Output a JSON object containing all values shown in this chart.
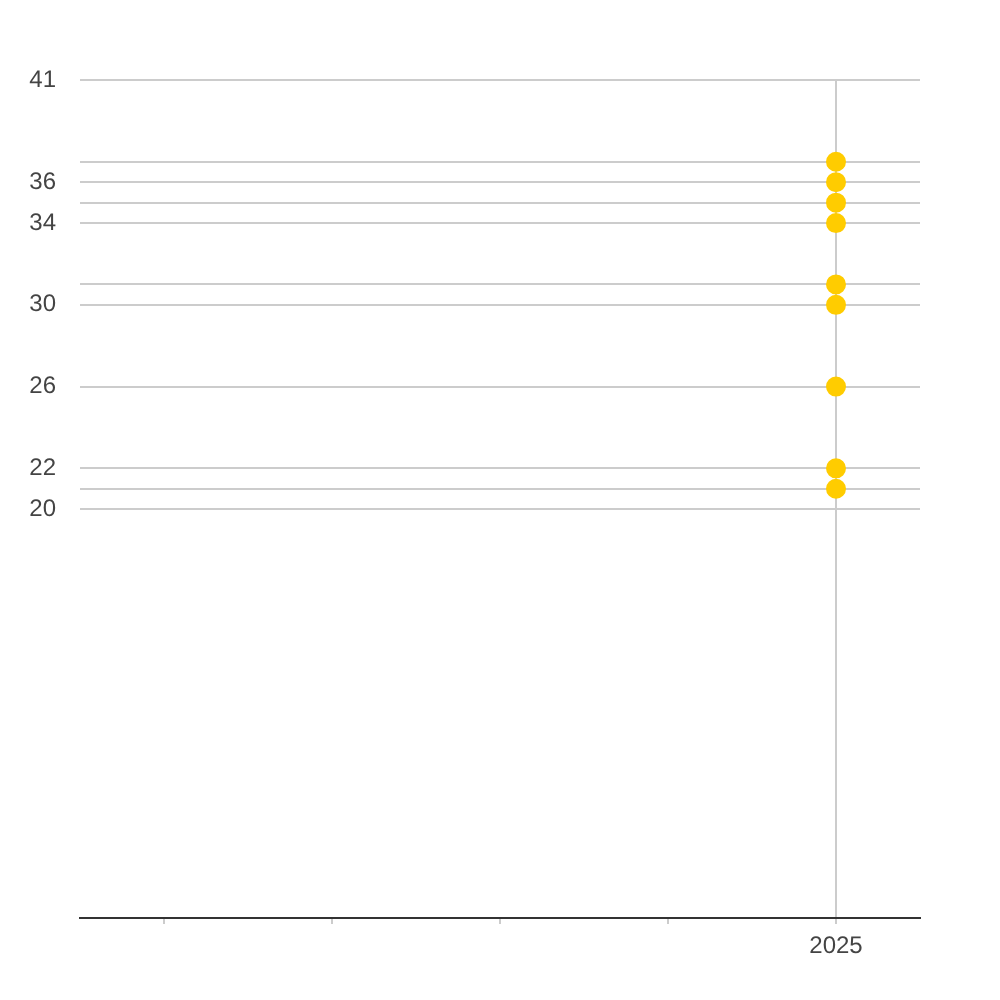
{
  "chart_data": {
    "type": "scatter",
    "marker": "circle",
    "categories": [
      null,
      null,
      null,
      null,
      "2025"
    ],
    "series": [
      {
        "color": "#ffcc00",
        "values": [
          null,
          null,
          null,
          null,
          37
        ]
      },
      {
        "color": "#ffcc00",
        "values": [
          null,
          null,
          null,
          null,
          36
        ]
      },
      {
        "color": "#ffcc00",
        "values": [
          null,
          null,
          null,
          null,
          35
        ]
      },
      {
        "color": "#ffcc00",
        "values": [
          null,
          null,
          null,
          null,
          34
        ]
      },
      {
        "color": "#ffcc00",
        "values": [
          null,
          null,
          null,
          null,
          31
        ]
      },
      {
        "color": "#ffcc00",
        "values": [
          null,
          null,
          null,
          null,
          30
        ]
      },
      {
        "color": "#ffcc00",
        "values": [
          null,
          null,
          null,
          null,
          26
        ]
      },
      {
        "color": "#ffcc00",
        "values": [
          null,
          null,
          null,
          null,
          22
        ]
      },
      {
        "color": "#ffcc00",
        "values": [
          null,
          null,
          null,
          null,
          21
        ]
      }
    ],
    "ylim": [
      0,
      41
    ],
    "yticks": [
      20,
      {
        "value": 21,
        "label": null
      },
      22,
      26,
      30,
      {
        "value": 31,
        "label": null
      },
      34,
      {
        "value": 35,
        "label": null
      },
      36,
      {
        "value": 37,
        "label": null
      },
      41
    ],
    "grid": true
  }
}
